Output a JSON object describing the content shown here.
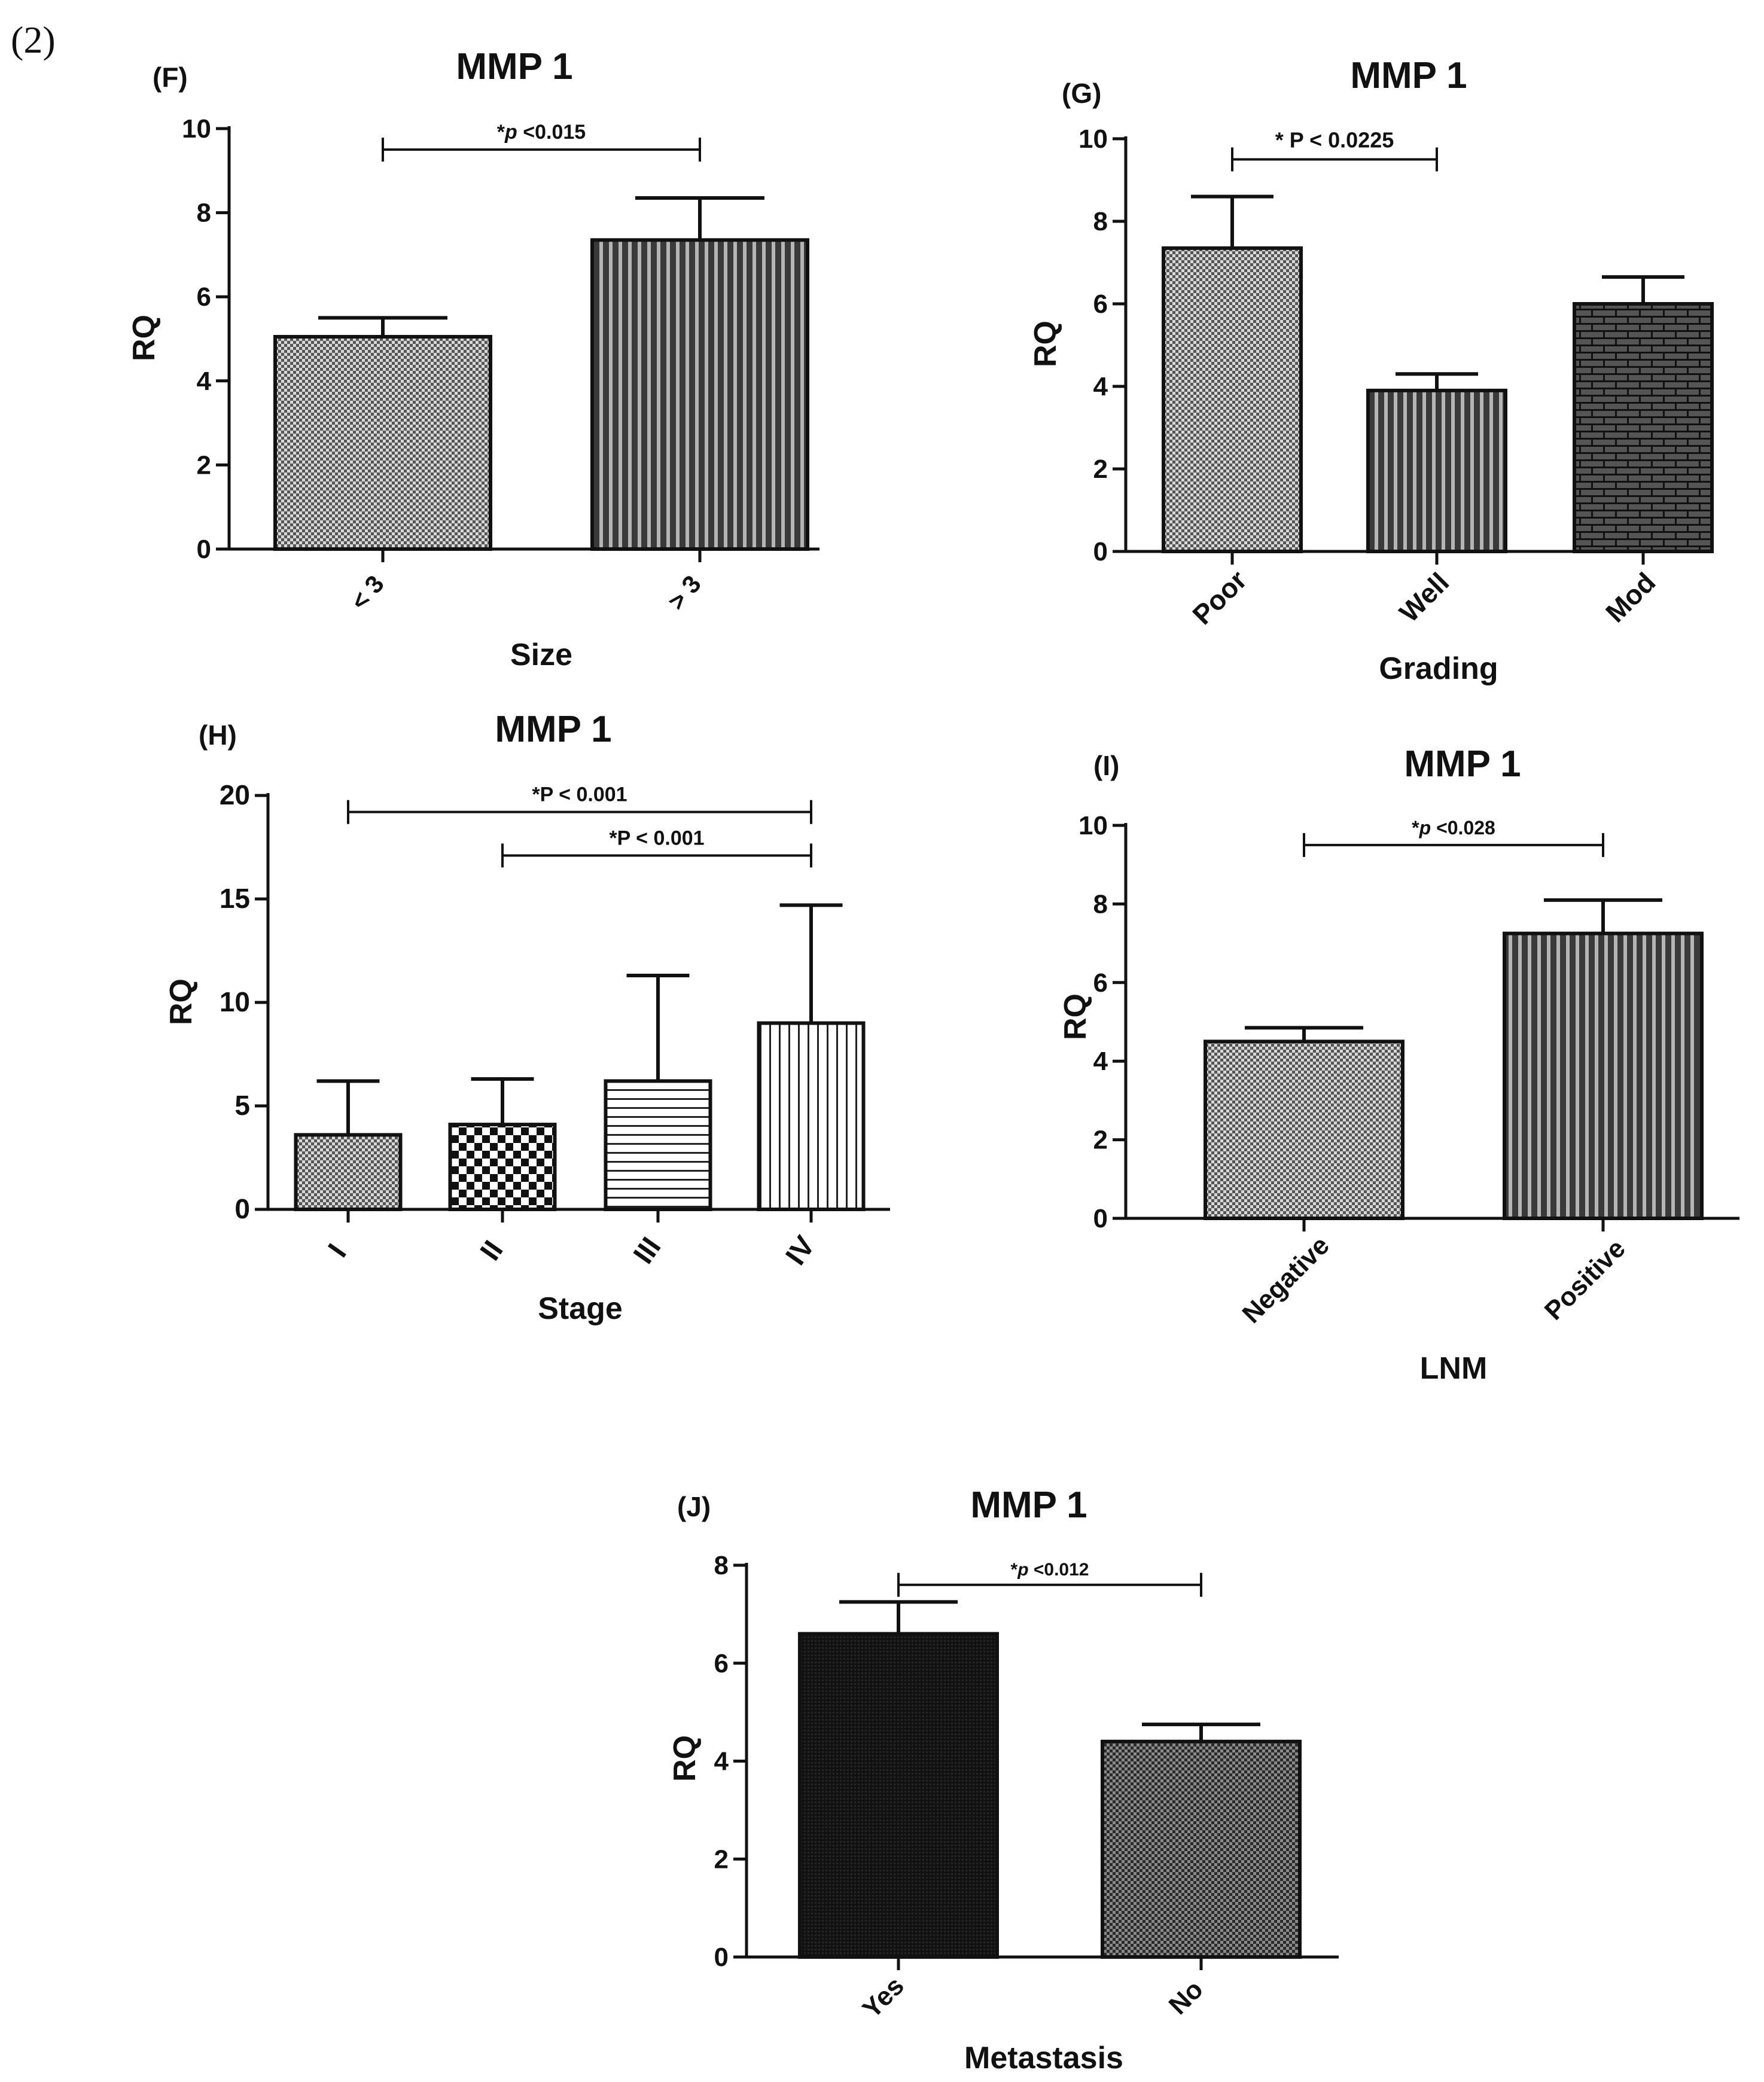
{
  "figure_label": "(2)",
  "chart_data": [
    {
      "panel": "(F)",
      "type": "bar",
      "title": "MMP 1",
      "xlabel": "Size",
      "ylabel": "RQ",
      "categories": [
        "< 3",
        "> 3"
      ],
      "values": [
        5.05,
        7.35
      ],
      "errors": [
        0.45,
        1.0
      ],
      "patterns": [
        "checker-fine",
        "vstripe"
      ],
      "yticks": [
        "0",
        "2",
        "4",
        "6",
        "8",
        "10"
      ],
      "ylim": [
        0,
        10
      ],
      "significance": [
        {
          "text_prefix": "*",
          "text_p": "p",
          "text_rest": " <0.015",
          "from": 0,
          "to": 1,
          "y": 9.5
        }
      ]
    },
    {
      "panel": "(G)",
      "type": "bar",
      "title": "MMP 1",
      "xlabel": "Grading",
      "ylabel": "RQ",
      "categories": [
        "Poor",
        "Well",
        "Mod"
      ],
      "values": [
        7.35,
        3.9,
        6.0
      ],
      "errors": [
        1.25,
        0.4,
        0.65
      ],
      "patterns": [
        "checker-fine",
        "vstripe",
        "brick"
      ],
      "yticks": [
        "0",
        "2",
        "4",
        "6",
        "8",
        "10"
      ],
      "ylim": [
        0,
        10
      ],
      "significance": [
        {
          "text_prefix": "* ",
          "text_p": "P",
          "text_rest": " < 0.0225",
          "from": 0,
          "to": 1,
          "y": 9.5
        }
      ]
    },
    {
      "panel": "(H)",
      "type": "bar",
      "title": "MMP 1",
      "xlabel": "Stage",
      "ylabel": "RQ",
      "categories": [
        "I",
        "II",
        "III",
        "IV"
      ],
      "values": [
        3.6,
        4.1,
        6.2,
        9.0
      ],
      "errors": [
        2.6,
        2.2,
        5.1,
        5.7
      ],
      "patterns": [
        "checker-fine",
        "checker-coarse",
        "hstripe",
        "vstripe-open"
      ],
      "yticks": [
        "0",
        "5",
        "10",
        "15",
        "20"
      ],
      "ylim": [
        0,
        20
      ],
      "significance": [
        {
          "text_prefix": "*",
          "text_p": "P",
          "text_rest": " < 0.001",
          "from": 0,
          "to": 3,
          "y": 19.2
        },
        {
          "text_prefix": "*",
          "text_p": "P",
          "text_rest": " < 0.001",
          "from": 1,
          "to": 3,
          "y": 17.1
        }
      ]
    },
    {
      "panel": "(I)",
      "type": "bar",
      "title": "MMP 1",
      "xlabel": "LNM",
      "ylabel": "RQ",
      "categories": [
        "Negative",
        "Positive"
      ],
      "values": [
        4.5,
        7.25
      ],
      "errors": [
        0.35,
        0.85
      ],
      "patterns": [
        "checker-fine",
        "vstripe"
      ],
      "yticks": [
        "0",
        "2",
        "4",
        "6",
        "8",
        "10"
      ],
      "ylim": [
        0,
        10
      ],
      "significance": [
        {
          "text_prefix": "*",
          "text_p": "p",
          "text_rest": " <0.028",
          "from": 0,
          "to": 1,
          "y": 9.5
        }
      ]
    },
    {
      "panel": "(J)",
      "type": "bar",
      "title": "MMP 1",
      "xlabel": "Metastasis",
      "ylabel": "RQ",
      "categories": [
        "Yes",
        "No"
      ],
      "values": [
        6.6,
        4.4
      ],
      "errors": [
        0.65,
        0.35
      ],
      "patterns": [
        "solid-dark",
        "checker-dark"
      ],
      "yticks": [
        "0",
        "2",
        "4",
        "6",
        "8"
      ],
      "ylim": [
        0,
        8
      ],
      "significance": [
        {
          "text_prefix": "*",
          "text_p": "p",
          "text_rest": " <0.012",
          "from": 0,
          "to": 1,
          "y": 7.6
        }
      ]
    }
  ]
}
